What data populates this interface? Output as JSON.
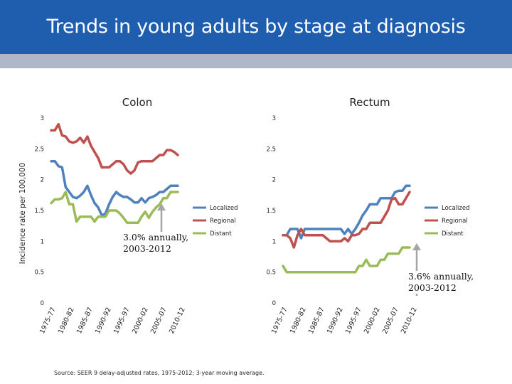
{
  "header": {
    "title": "Trends in young adults by stage at diagnosis"
  },
  "y_axis_label": "Incidence rate per 100,000",
  "source_note": "Source: SEER 9 delay-adjusted rates, 1975-2012; 3-year moving average.",
  "annotations": {
    "colon": [
      "3.0% annually,",
      "2003-2012"
    ],
    "rectum": [
      "3.6% annually,",
      "2003-2012"
    ]
  },
  "colors": {
    "header": "#1f5eae",
    "band": "#aeb8c8",
    "localized": "#4f81bd",
    "regional": "#c0504d",
    "distant": "#9bbb59",
    "arrow": "#a6a6a6"
  },
  "chart_data": [
    {
      "type": "line",
      "title": "Colon",
      "ylim": [
        0,
        3
      ],
      "yticks": [
        "0",
        "0.5",
        "1",
        "1.5",
        "2",
        "2.5",
        "3"
      ],
      "xtick_labels": [
        "1975-77",
        "1980-82",
        "1985-87",
        "1990-92",
        "1995-97",
        "2000-02",
        "2005-07",
        "2010-12"
      ],
      "x": [
        1976,
        1977,
        1978,
        1979,
        1980,
        1981,
        1982,
        1983,
        1984,
        1985,
        1986,
        1987,
        1988,
        1989,
        1990,
        1991,
        1992,
        1993,
        1994,
        1995,
        1996,
        1997,
        1998,
        1999,
        2000,
        2001,
        2002,
        2003,
        2004,
        2005,
        2006,
        2007,
        2008,
        2009,
        2010,
        2011
      ],
      "series": [
        {
          "name": "Localized",
          "values": [
            2.3,
            2.3,
            2.22,
            2.2,
            1.88,
            1.8,
            1.72,
            1.7,
            1.74,
            1.8,
            1.9,
            1.75,
            1.62,
            1.55,
            1.42,
            1.45,
            1.6,
            1.72,
            1.8,
            1.75,
            1.72,
            1.72,
            1.68,
            1.63,
            1.63,
            1.7,
            1.63,
            1.7,
            1.72,
            1.75,
            1.8,
            1.8,
            1.85,
            1.9,
            1.9,
            1.9
          ]
        },
        {
          "name": "Regional",
          "values": [
            2.8,
            2.8,
            2.9,
            2.72,
            2.7,
            2.62,
            2.6,
            2.62,
            2.68,
            2.6,
            2.7,
            2.55,
            2.45,
            2.35,
            2.2,
            2.2,
            2.2,
            2.25,
            2.3,
            2.3,
            2.25,
            2.15,
            2.1,
            2.15,
            2.28,
            2.3,
            2.3,
            2.3,
            2.3,
            2.35,
            2.4,
            2.4,
            2.48,
            2.48,
            2.45,
            2.4
          ]
        },
        {
          "name": "Distant",
          "values": [
            1.62,
            1.68,
            1.68,
            1.7,
            1.8,
            1.6,
            1.6,
            1.32,
            1.4,
            1.4,
            1.4,
            1.4,
            1.32,
            1.4,
            1.4,
            1.4,
            1.5,
            1.5,
            1.5,
            1.45,
            1.38,
            1.3,
            1.3,
            1.3,
            1.3,
            1.4,
            1.48,
            1.38,
            1.48,
            1.55,
            1.6,
            1.7,
            1.7,
            1.8,
            1.8,
            1.8
          ]
        }
      ],
      "legend": [
        "Localized",
        "Regional",
        "Distant"
      ]
    },
    {
      "type": "line",
      "title": "Rectum",
      "ylim": [
        0,
        3
      ],
      "yticks": [
        "0",
        "0.5",
        "1",
        "1.5",
        "2",
        "2.5",
        "3"
      ],
      "xtick_labels": [
        "1975-77",
        "1980-82",
        "1985-87",
        "1990-92",
        "1995-97",
        "2000-02",
        "2005-07",
        "2010-12"
      ],
      "x": [
        1976,
        1977,
        1978,
        1979,
        1980,
        1981,
        1982,
        1983,
        1984,
        1985,
        1986,
        1987,
        1988,
        1989,
        1990,
        1991,
        1992,
        1993,
        1994,
        1995,
        1996,
        1997,
        1998,
        1999,
        2000,
        2001,
        2002,
        2003,
        2004,
        2005,
        2006,
        2007,
        2008,
        2009,
        2010,
        2011
      ],
      "series": [
        {
          "name": "Localized",
          "values": [
            1.1,
            1.1,
            1.2,
            1.2,
            1.2,
            1.05,
            1.2,
            1.2,
            1.2,
            1.2,
            1.2,
            1.2,
            1.2,
            1.2,
            1.2,
            1.2,
            1.2,
            1.12,
            1.2,
            1.12,
            1.2,
            1.3,
            1.42,
            1.5,
            1.6,
            1.6,
            1.6,
            1.7,
            1.7,
            1.7,
            1.7,
            1.8,
            1.82,
            1.82,
            1.9,
            1.9
          ]
        },
        {
          "name": "Regional",
          "values": [
            1.1,
            1.1,
            1.05,
            0.9,
            1.1,
            1.2,
            1.1,
            1.1,
            1.1,
            1.1,
            1.1,
            1.1,
            1.05,
            1.0,
            1.0,
            1.0,
            1.0,
            1.05,
            1.0,
            1.1,
            1.1,
            1.12,
            1.2,
            1.2,
            1.3,
            1.3,
            1.3,
            1.3,
            1.4,
            1.5,
            1.68,
            1.7,
            1.6,
            1.6,
            1.7,
            1.8
          ]
        },
        {
          "name": "Distant",
          "values": [
            0.6,
            0.5,
            0.5,
            0.5,
            0.5,
            0.5,
            0.5,
            0.5,
            0.5,
            0.5,
            0.5,
            0.5,
            0.5,
            0.5,
            0.5,
            0.5,
            0.5,
            0.5,
            0.5,
            0.5,
            0.5,
            0.6,
            0.6,
            0.7,
            0.6,
            0.6,
            0.6,
            0.7,
            0.7,
            0.8,
            0.8,
            0.8,
            0.8,
            0.9,
            0.9,
            0.9
          ]
        }
      ],
      "legend": [
        "Localized",
        "Regional",
        "Distant"
      ]
    }
  ]
}
